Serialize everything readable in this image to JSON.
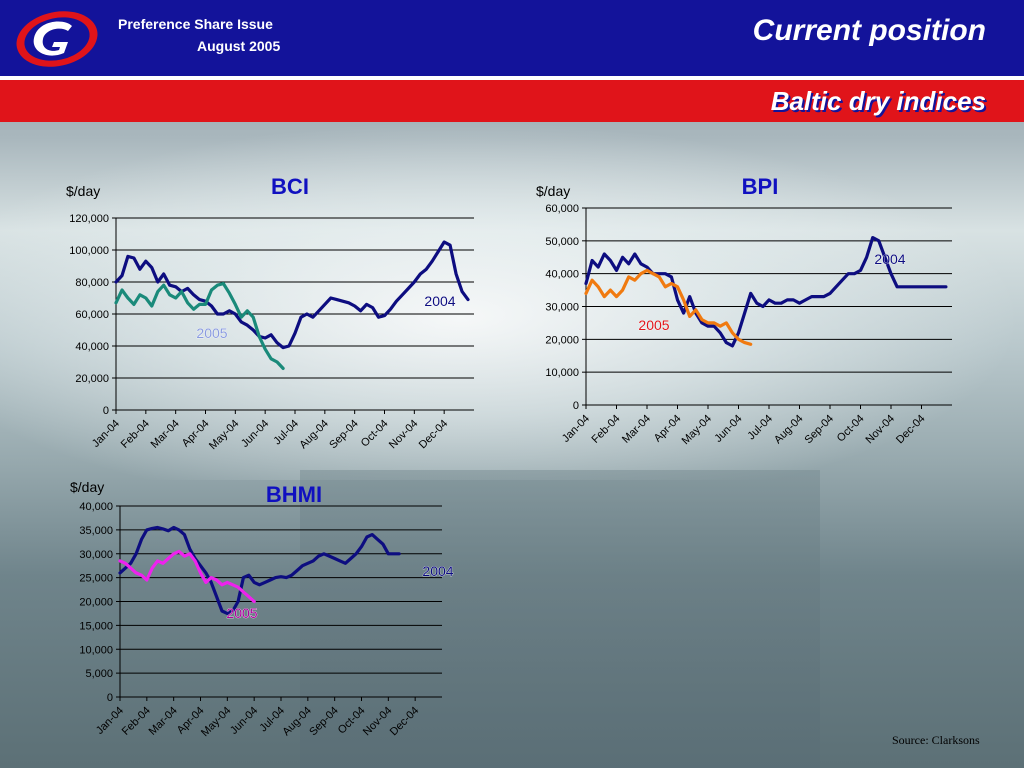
{
  "header": {
    "issue_line1": "Preference Share Issue",
    "issue_line2": "August  2005",
    "title": "Current position",
    "subtitle": "Baltic dry indices"
  },
  "colors": {
    "header_blue": "#13139a",
    "red_bar": "#e0141a",
    "series_2004": "#0d0d80",
    "bci_2005": "#1a8a7a",
    "bpi_2005": "#f07a10",
    "bhmi_2005": "#ee22ee"
  },
  "source": "Source: Clarksons",
  "chart_data": [
    {
      "type": "line",
      "title": "BCI",
      "ylabel": "$/day",
      "ylim": [
        0,
        120000
      ],
      "yticks": [
        "120,000",
        "100,000",
        "80,000",
        "60,000",
        "40,000",
        "20,000",
        "0"
      ],
      "xticks": [
        "Jan-04",
        "Feb-04",
        "Mar-04",
        "Apr-04",
        "May-04",
        "Jun-04",
        "Jul-04",
        "Aug-04",
        "Sep-04",
        "Oct-04",
        "Nov-04",
        "Dec-04"
      ],
      "xlim": [
        0,
        12
      ],
      "series": [
        {
          "name": "2004",
          "color": "#0d0d80",
          "x": [
            0,
            0.2,
            0.4,
            0.6,
            0.8,
            1.0,
            1.2,
            1.4,
            1.6,
            1.8,
            2.0,
            2.2,
            2.4,
            2.6,
            2.8,
            3.0,
            3.2,
            3.4,
            3.6,
            3.8,
            4.0,
            4.2,
            4.4,
            4.6,
            4.8,
            5.0,
            5.2,
            5.4,
            5.6,
            5.8,
            6.0,
            6.2,
            6.4,
            6.6,
            6.8,
            7.0,
            7.2,
            7.4,
            7.6,
            7.8,
            8.0,
            8.2,
            8.4,
            8.6,
            8.8,
            9.0,
            9.2,
            9.4,
            9.6,
            9.8,
            10.0,
            10.2,
            10.4,
            10.6,
            10.8,
            11.0,
            11.2,
            11.4,
            11.6,
            11.8
          ],
          "y": [
            80000,
            84000,
            96000,
            95000,
            88000,
            93000,
            89000,
            80000,
            85000,
            78000,
            77000,
            74000,
            76000,
            72000,
            69000,
            68000,
            65000,
            60000,
            60000,
            62000,
            60000,
            55000,
            53000,
            50000,
            46000,
            45000,
            47000,
            42000,
            39000,
            40000,
            48000,
            58000,
            60000,
            58000,
            62000,
            66000,
            70000,
            69000,
            68000,
            67000,
            65000,
            62000,
            66000,
            64000,
            58000,
            59000,
            63000,
            68000,
            72000,
            76000,
            80000,
            85000,
            88000,
            93000,
            99000,
            105000,
            103000,
            85000,
            74000,
            69000
          ]
        },
        {
          "name": "2005",
          "color": "#1a8a7a",
          "x": [
            0,
            0.2,
            0.4,
            0.6,
            0.8,
            1.0,
            1.2,
            1.4,
            1.6,
            1.8,
            2.0,
            2.2,
            2.4,
            2.6,
            2.8,
            3.0,
            3.2,
            3.4,
            3.6,
            3.8,
            4.0,
            4.2,
            4.4,
            4.6,
            4.8,
            5.0,
            5.2,
            5.4,
            5.6
          ],
          "y": [
            67000,
            75000,
            70000,
            66000,
            72000,
            70000,
            65000,
            74000,
            78000,
            72000,
            70000,
            74000,
            67000,
            63000,
            66000,
            66000,
            75000,
            78000,
            79000,
            73000,
            66000,
            58000,
            62000,
            58000,
            46000,
            38000,
            32000,
            30000,
            26000
          ]
        }
      ]
    },
    {
      "type": "line",
      "title": "BPI",
      "ylabel": "$/day",
      "ylim": [
        0,
        60000
      ],
      "yticks": [
        "60,000",
        "50,000",
        "40,000",
        "30,000",
        "20,000",
        "10,000",
        "0"
      ],
      "xticks": [
        "Jan-04",
        "Feb-04",
        "Mar-04",
        "Apr-04",
        "May-04",
        "Jun-04",
        "Jul-04",
        "Aug-04",
        "Sep-04",
        "Oct-04",
        "Nov-04",
        "Dec-04"
      ],
      "xlim": [
        0,
        12
      ],
      "series": [
        {
          "name": "2004",
          "color": "#0d0d80",
          "x": [
            0,
            0.2,
            0.4,
            0.6,
            0.8,
            1.0,
            1.2,
            1.4,
            1.6,
            1.8,
            2.0,
            2.2,
            2.4,
            2.6,
            2.8,
            3.0,
            3.2,
            3.4,
            3.6,
            3.8,
            4.0,
            4.2,
            4.4,
            4.6,
            4.8,
            5.0,
            5.2,
            5.4,
            5.6,
            5.8,
            6.0,
            6.2,
            6.4,
            6.6,
            6.8,
            7.0,
            7.2,
            7.4,
            7.6,
            7.8,
            8.0,
            8.2,
            8.4,
            8.6,
            8.8,
            9.0,
            9.2,
            9.4,
            9.6,
            9.8,
            10.0,
            10.2,
            10.4,
            10.6,
            10.8,
            11.0,
            11.2,
            11.4,
            11.6,
            11.8
          ],
          "y": [
            37000,
            44000,
            42000,
            46000,
            44000,
            41000,
            45000,
            43000,
            46000,
            43000,
            42000,
            40000,
            40000,
            40000,
            39000,
            32000,
            28000,
            33000,
            28000,
            25000,
            24000,
            24000,
            22000,
            19000,
            18000,
            22000,
            28000,
            34000,
            31000,
            30000,
            32000,
            31000,
            31000,
            32000,
            32000,
            31000,
            32000,
            33000,
            33000,
            33000,
            34000,
            36000,
            38000,
            40000,
            40000,
            41000,
            45000,
            51000,
            50000,
            45000,
            40000,
            36000,
            36000,
            36000,
            36000,
            36000,
            36000,
            36000,
            36000,
            36000
          ]
        },
        {
          "name": "2005",
          "color": "#f07a10",
          "x": [
            0,
            0.2,
            0.4,
            0.6,
            0.8,
            1.0,
            1.2,
            1.4,
            1.6,
            1.8,
            2.0,
            2.2,
            2.4,
            2.6,
            2.8,
            3.0,
            3.2,
            3.4,
            3.6,
            3.8,
            4.0,
            4.2,
            4.4,
            4.6,
            4.8,
            5.0,
            5.2,
            5.4
          ],
          "y": [
            34000,
            38000,
            36000,
            33000,
            35000,
            33000,
            35000,
            39000,
            38000,
            40000,
            41000,
            40000,
            39000,
            36000,
            37000,
            36000,
            32000,
            27000,
            29000,
            26000,
            25000,
            25000,
            24000,
            25000,
            22000,
            20000,
            19000,
            18500
          ]
        }
      ]
    },
    {
      "type": "line",
      "title": "BHMI",
      "ylabel": "$/day",
      "ylim": [
        0,
        40000
      ],
      "yticks": [
        "40,000",
        "35,000",
        "30,000",
        "25,000",
        "20,000",
        "15,000",
        "10,000",
        "5,000",
        "0"
      ],
      "xticks": [
        "Jan-04",
        "Feb-04",
        "Mar-04",
        "Apr-04",
        "May-04",
        "Jun-04",
        "Jul-04",
        "Aug-04",
        "Sep-04",
        "Oct-04",
        "Nov-04",
        "Dec-04"
      ],
      "xlim": [
        0,
        12
      ],
      "series": [
        {
          "name": "2004",
          "color": "#0d0d80",
          "x": [
            0,
            0.2,
            0.4,
            0.6,
            0.8,
            1.0,
            1.2,
            1.4,
            1.6,
            1.8,
            2.0,
            2.2,
            2.4,
            2.6,
            2.8,
            3.0,
            3.2,
            3.4,
            3.6,
            3.8,
            4.0,
            4.2,
            4.4,
            4.6,
            4.8,
            5.0,
            5.2,
            5.4,
            5.6,
            5.8,
            6.0,
            6.2,
            6.4,
            6.6,
            6.8,
            7.0,
            7.2,
            7.4,
            7.6,
            7.8,
            8.0,
            8.2,
            8.4,
            8.6,
            8.8,
            9.0,
            9.2,
            9.4,
            9.6,
            9.8,
            10.0,
            10.2,
            10.4
          ],
          "y": [
            26000,
            27000,
            28000,
            30000,
            33000,
            35000,
            35300,
            35500,
            35200,
            34800,
            35500,
            35000,
            34000,
            31000,
            29000,
            27500,
            26000,
            24000,
            21000,
            18000,
            17500,
            18000,
            20000,
            25000,
            25500,
            24000,
            23500,
            24000,
            24500,
            25000,
            25200,
            25000,
            25500,
            26500,
            27500,
            28000,
            28500,
            29500,
            30000,
            29500,
            29000,
            28500,
            28000,
            29000,
            30000,
            31500,
            33500,
            34000,
            33000,
            32000,
            30000,
            30000,
            30000
          ]
        },
        {
          "name": "2005",
          "color": "#ee22ee",
          "x": [
            0,
            0.2,
            0.4,
            0.6,
            0.8,
            1.0,
            1.2,
            1.4,
            1.6,
            1.8,
            2.0,
            2.2,
            2.4,
            2.6,
            2.8,
            3.0,
            3.2,
            3.4,
            3.6,
            3.8,
            4.0,
            4.2,
            4.4,
            4.6,
            4.8,
            5.0
          ],
          "y": [
            28500,
            28000,
            27000,
            26000,
            25500,
            24500,
            27000,
            28500,
            28000,
            29000,
            30000,
            30500,
            29500,
            30000,
            28500,
            26000,
            24000,
            25000,
            24500,
            23500,
            24000,
            23500,
            23000,
            22000,
            21000,
            20000
          ]
        }
      ]
    }
  ]
}
